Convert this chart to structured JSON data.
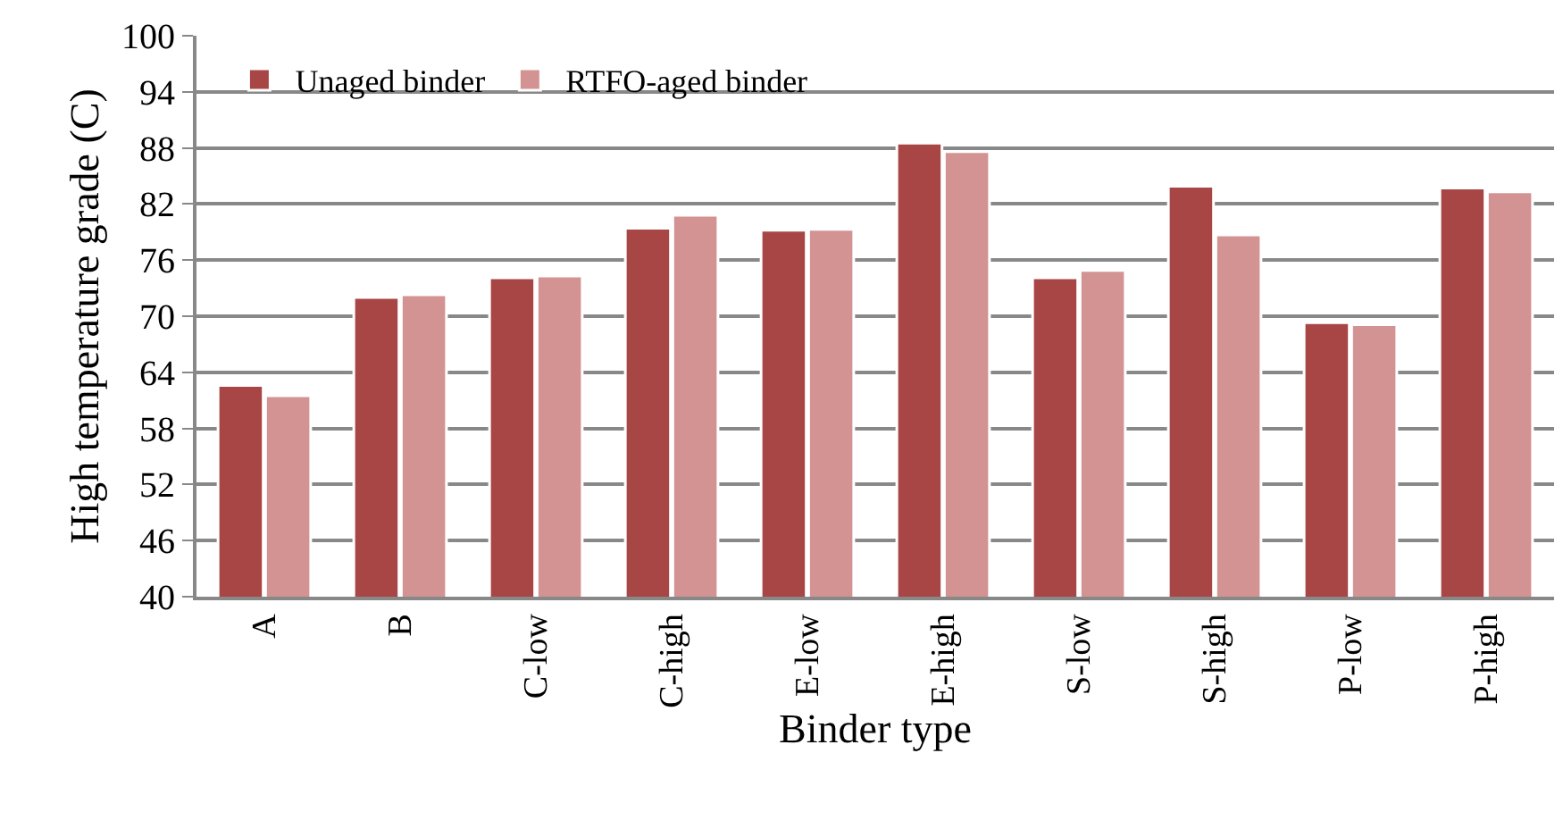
{
  "chart_data": {
    "type": "bar",
    "xlabel": "Binder type",
    "ylabel": "High temperature grade (C)",
    "categories": [
      "A",
      "B",
      "C-low",
      "C-high",
      "E-low",
      "E-high",
      "S-low",
      "S-high",
      "P-low",
      "P-high"
    ],
    "series": [
      {
        "name": "Unaged binder",
        "color": "#a84646",
        "values": [
          62.6,
          72.0,
          74.1,
          79.4,
          79.2,
          88.5,
          74.1,
          83.9,
          69.3,
          83.7
        ]
      },
      {
        "name": "RTFO-aged binder",
        "color": "#d39393",
        "values": [
          61.5,
          72.3,
          74.3,
          80.8,
          79.3,
          87.6,
          74.9,
          78.7,
          69.1,
          83.3
        ]
      }
    ],
    "ylim": [
      40,
      100
    ],
    "yticks": [
      40,
      46,
      52,
      58,
      64,
      70,
      76,
      82,
      88,
      94,
      100
    ],
    "grid": "y",
    "legend": "top left"
  }
}
